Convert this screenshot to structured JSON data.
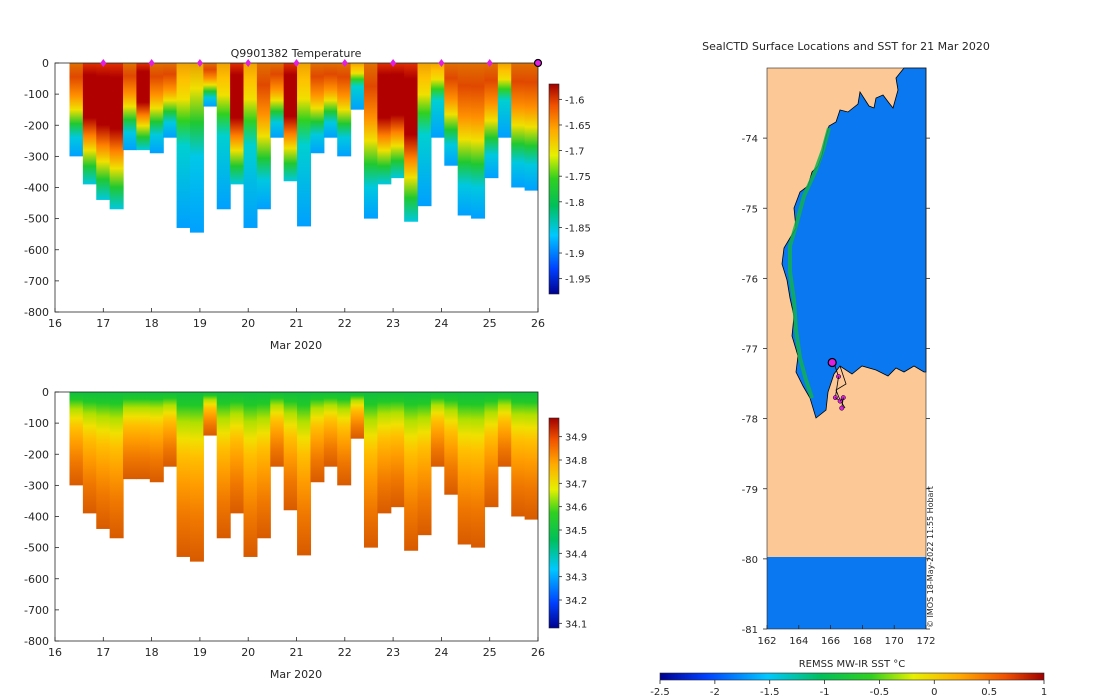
{
  "chart_data": [
    {
      "type": "heatmap",
      "title": "Q9901382  Temperature",
      "xlabel": "Mar 2020",
      "ylabel": "",
      "xlim": [
        16,
        26
      ],
      "ylim": [
        -800,
        0
      ],
      "x_ticks": [
        16,
        17,
        18,
        19,
        20,
        21,
        22,
        23,
        24,
        25,
        26
      ],
      "x_tick_labels": [
        "16",
        "17",
        "18",
        "19",
        "20",
        "21",
        "22",
        "23",
        "24",
        "25",
        "26"
      ],
      "y_ticks": [
        0,
        -100,
        -200,
        -300,
        -400,
        -500,
        -600,
        -700,
        -800
      ],
      "y_tick_labels": [
        "0",
        "-100",
        "-200",
        "-300",
        "-400",
        "-500",
        "-600",
        "-700",
        "-800"
      ],
      "colorbar": {
        "range": [
          -1.98,
          -1.57
        ],
        "ticks": [
          -1.6,
          -1.65,
          -1.7,
          -1.75,
          -1.8,
          -1.85,
          -1.9,
          -1.95
        ],
        "tick_labels": [
          "-1.6",
          "-1.65",
          "-1.7",
          "-1.75",
          "-1.8",
          "-1.85",
          "-1.9",
          "-1.95"
        ]
      },
      "surface_markers_day": [
        17,
        18,
        19,
        20,
        21,
        22,
        23,
        24,
        25
      ],
      "current_profile_day": 26,
      "profile_max_depth_m": [
        -300,
        -390,
        -440,
        -470,
        -280,
        -280,
        -290,
        -240,
        -530,
        -545,
        -140,
        -470,
        -390,
        -530,
        -470,
        -240,
        -380,
        -525,
        -290,
        -240,
        -300,
        -150,
        -500,
        -390,
        -370,
        -510,
        -460,
        -240,
        -330,
        -490,
        -500,
        -370,
        -240,
        -400,
        -410
      ],
      "temperature_profile_class": [
        2,
        3,
        3,
        3,
        2,
        3,
        2,
        2,
        1,
        0,
        2,
        1,
        3,
        1,
        2,
        2,
        3,
        1,
        2,
        2,
        2,
        1,
        2,
        3,
        3,
        3,
        1,
        1,
        2,
        2,
        2,
        2,
        1,
        2,
        2
      ]
    },
    {
      "type": "heatmap",
      "title": "",
      "xlabel": "Mar 2020",
      "ylabel": "",
      "xlim": [
        16,
        26
      ],
      "ylim": [
        -800,
        0
      ],
      "x_ticks": [
        16,
        17,
        18,
        19,
        20,
        21,
        22,
        23,
        24,
        25,
        26
      ],
      "x_tick_labels": [
        "16",
        "17",
        "18",
        "19",
        "20",
        "21",
        "22",
        "23",
        "24",
        "25",
        "26"
      ],
      "y_ticks": [
        0,
        -100,
        -200,
        -300,
        -400,
        -500,
        -600,
        -700,
        -800
      ],
      "y_tick_labels": [
        "0",
        "-100",
        "-200",
        "-300",
        "-400",
        "-500",
        "-600",
        "-700",
        "-800"
      ],
      "colorbar": {
        "range": [
          34.08,
          34.98
        ],
        "ticks": [
          34.9,
          34.8,
          34.7,
          34.6,
          34.5,
          34.4,
          34.3,
          34.2,
          34.1
        ],
        "tick_labels": [
          "34.9",
          "34.8",
          "34.7",
          "34.6",
          "34.5",
          "34.4",
          "34.3",
          "34.2",
          "34.1"
        ]
      },
      "salinity_surface_value": 34.38,
      "salinity_deep_value": 34.88
    },
    {
      "type": "heatmap",
      "title": "SealCTD Surface Locations and SST for 21 Mar 2020",
      "xlabel": "",
      "ylabel": "",
      "xlim": [
        162,
        172
      ],
      "ylim": [
        -81,
        -73
      ],
      "x_ticks": [
        162,
        164,
        166,
        168,
        170,
        172
      ],
      "x_tick_labels": [
        "162",
        "164",
        "166",
        "168",
        "170",
        "172"
      ],
      "y_ticks": [
        -74,
        -75,
        -76,
        -77,
        -78,
        -79,
        -80,
        -81
      ],
      "y_tick_labels": [
        "-74",
        "-75",
        "-76",
        "-77",
        "-78",
        "-79",
        "-80",
        "-81"
      ],
      "colorbar": {
        "label": "REMSS MW-IR SST °C",
        "range": [
          -2.5,
          1
        ],
        "ticks": [
          -2.5,
          -2,
          -1.5,
          -1,
          -0.5,
          0,
          0.5,
          1
        ],
        "tick_labels": [
          "-2.5",
          "-2",
          "-1.5",
          "-1",
          "-0.5",
          "0",
          "0.5",
          "1"
        ]
      },
      "sea_sst_value": -1.7,
      "current_location": {
        "lon": 166.1,
        "lat": -77.2
      },
      "track_points": [
        {
          "lon": 166.2,
          "lat": -77.2
        },
        {
          "lon": 166.5,
          "lat": -77.4
        },
        {
          "lon": 166.3,
          "lat": -77.7
        },
        {
          "lon": 166.6,
          "lat": -77.75
        },
        {
          "lon": 166.8,
          "lat": -77.7
        },
        {
          "lon": 166.7,
          "lat": -77.85
        }
      ],
      "credit": "© IMOS 18-May-2022 11:55 Hobart"
    }
  ]
}
